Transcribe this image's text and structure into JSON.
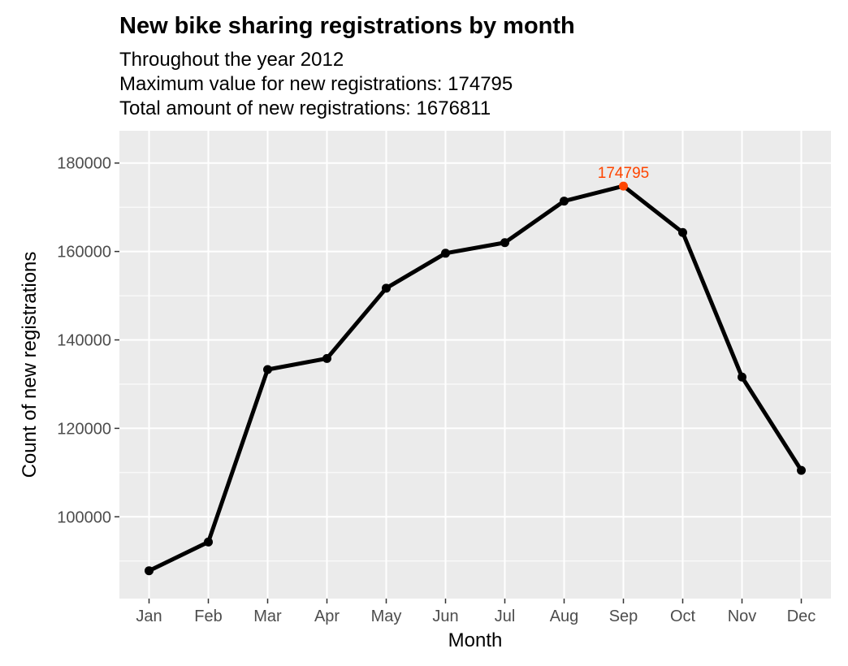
{
  "title": "New bike sharing registrations by month",
  "subtitles": [
    "Throughout the year 2012",
    "Maximum value for new registrations: 174795",
    "Total amount of new registrations: 1676811"
  ],
  "colors": {
    "panel_background": "#EBEBEB",
    "gridline": "#FFFFFF",
    "line": "#000000",
    "highlight": "#FF4500"
  },
  "chart_data": {
    "type": "line",
    "xlabel": "Month",
    "ylabel": "Count of new registrations",
    "categories": [
      "Jan",
      "Feb",
      "Mar",
      "Apr",
      "May",
      "Jun",
      "Jul",
      "Aug",
      "Sep",
      "Oct",
      "Nov",
      "Dec"
    ],
    "values": [
      87800,
      94300,
      133300,
      135800,
      151700,
      159600,
      162000,
      171400,
      174795,
      164300,
      131600,
      110500
    ],
    "ylim": [
      81500,
      187300
    ],
    "yticks": [
      100000,
      120000,
      140000,
      160000,
      180000
    ],
    "ytick_labels": [
      "100000",
      "120000",
      "140000",
      "160000",
      "180000"
    ],
    "grid": true,
    "annotations": [
      {
        "category": "Sep",
        "value": 174795,
        "label": "174795",
        "color": "#FF4500"
      }
    ]
  }
}
